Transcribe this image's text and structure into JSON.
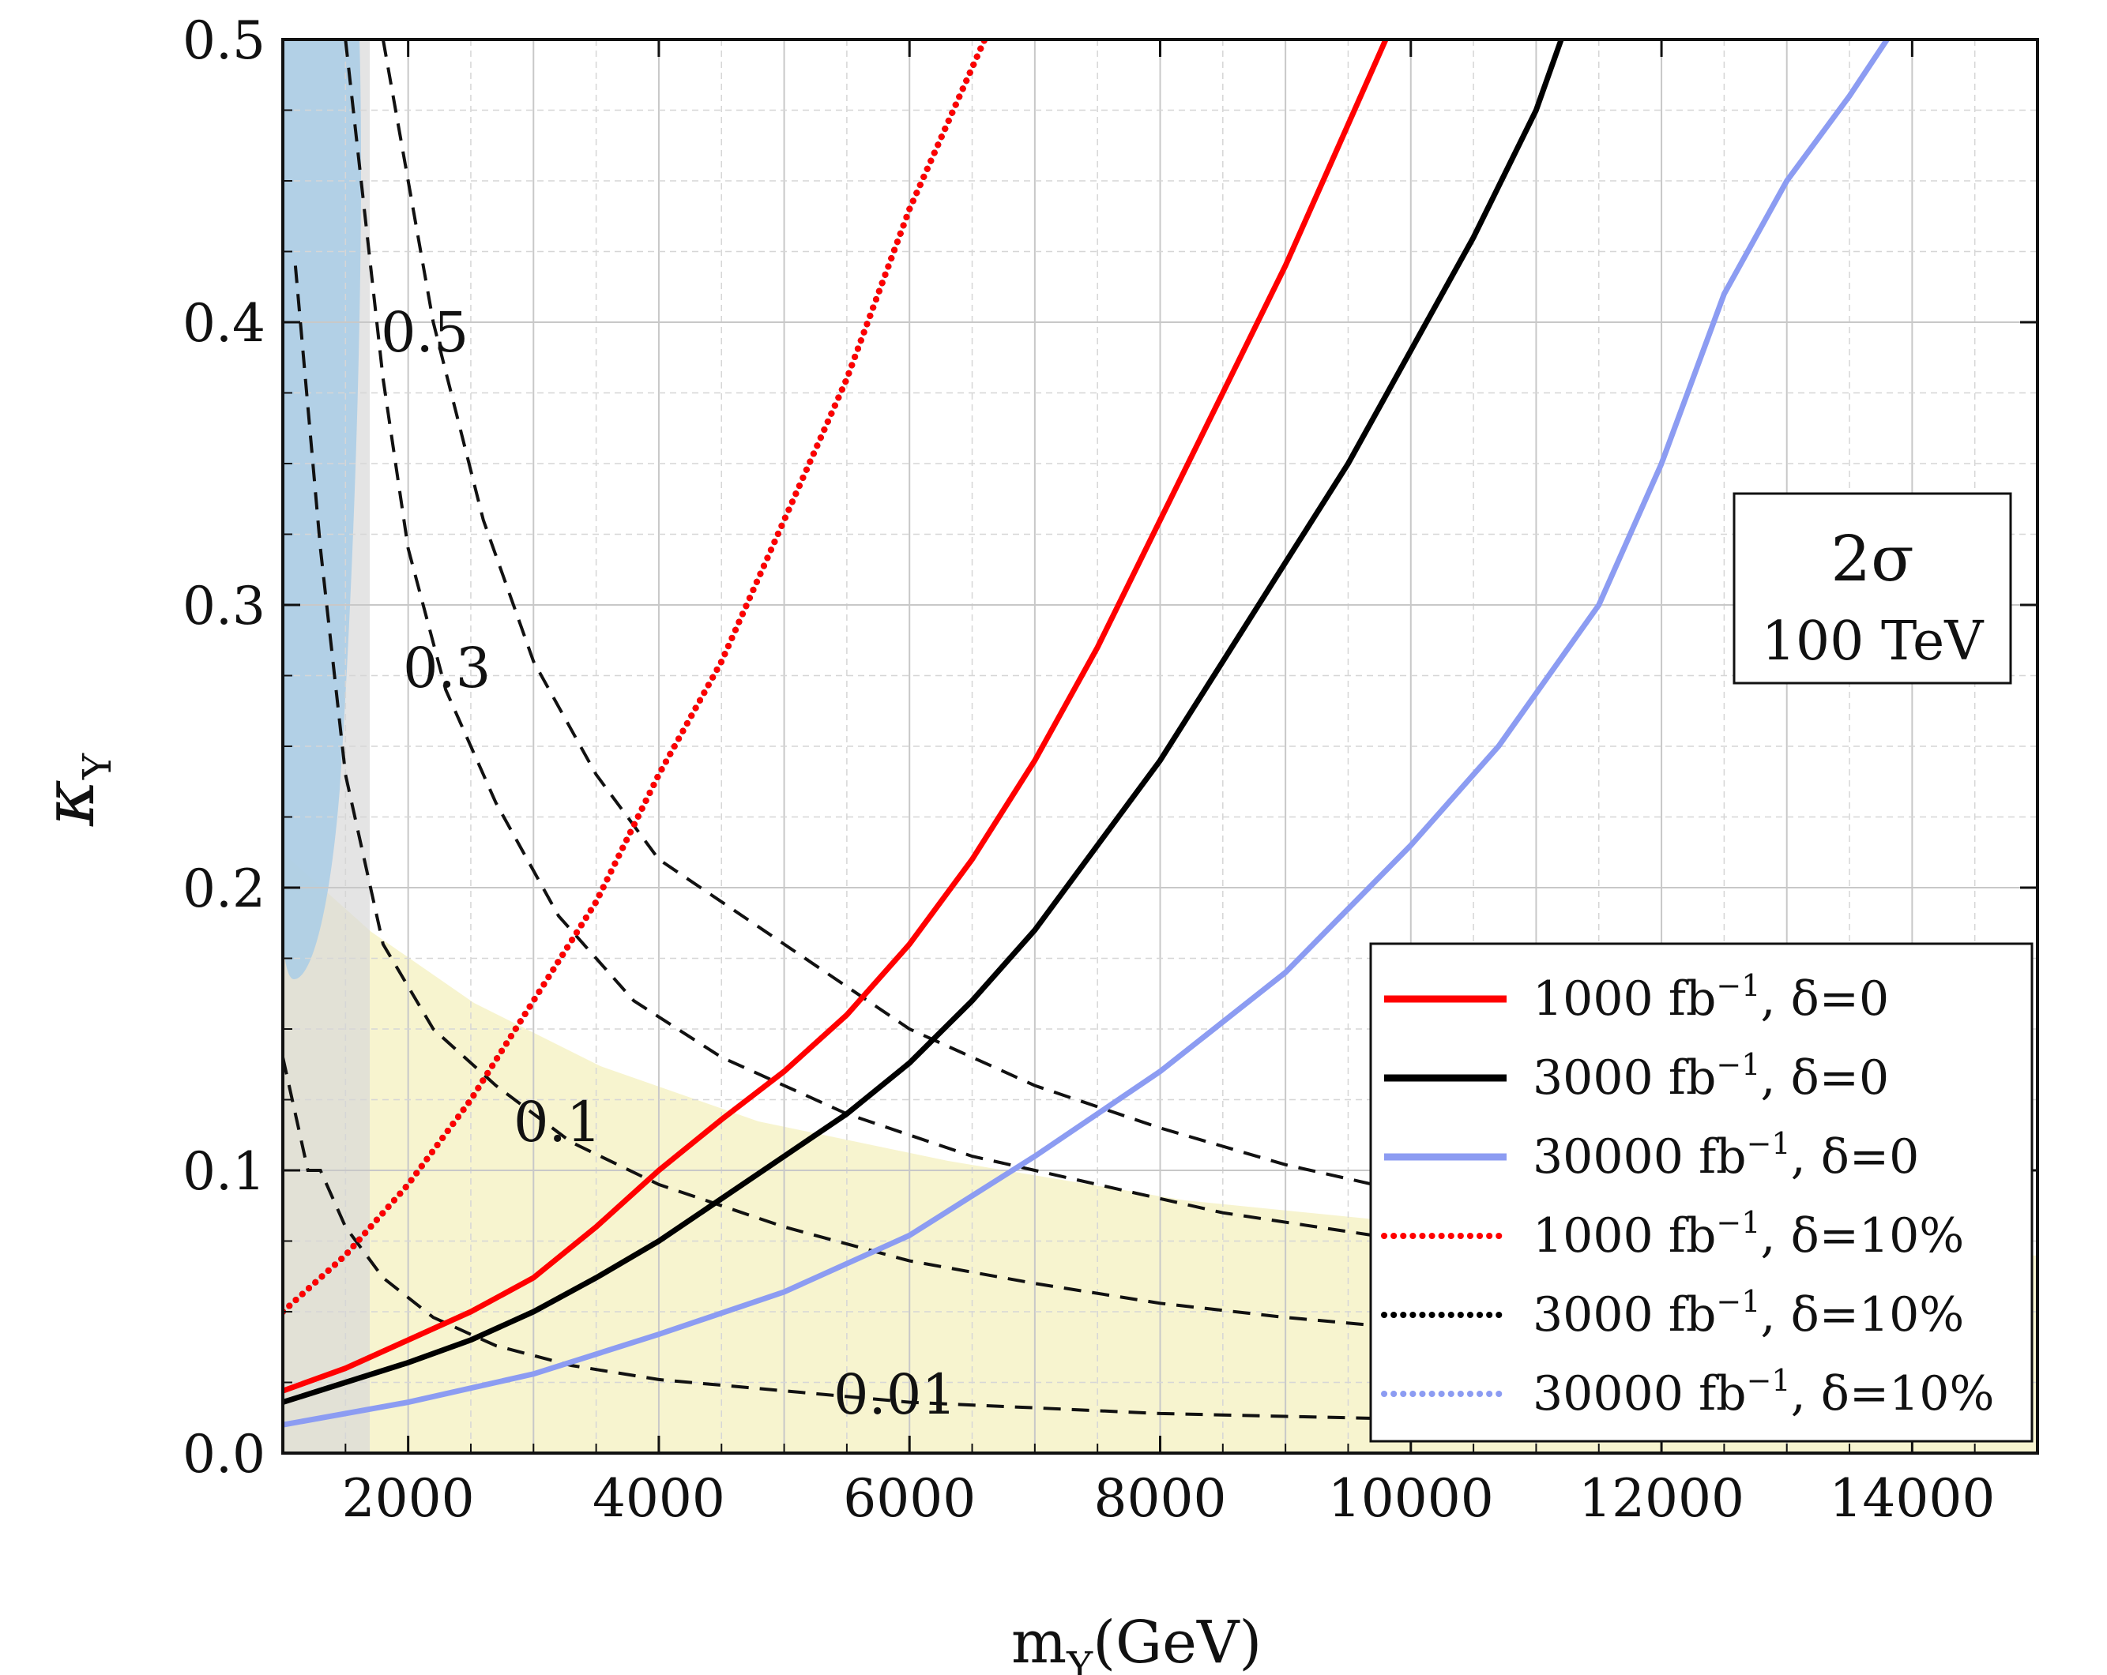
{
  "chart_data": {
    "type": "line",
    "xlabel_main": "m",
    "xlabel_sub": "Y",
    "xlabel_unit": "(GeV)",
    "ylabel_main": "κ",
    "ylabel_sub": "Y",
    "xlim": [
      1000,
      15000
    ],
    "ylim": [
      0.0,
      0.5
    ],
    "x_ticks": [
      2000,
      4000,
      6000,
      8000,
      10000,
      12000,
      14000
    ],
    "y_ticks": [
      0.0,
      0.1,
      0.2,
      0.3,
      0.4,
      0.5
    ],
    "y_tick_labels": [
      "0.0",
      "0.1",
      "0.2",
      "0.3",
      "0.4",
      "0.5"
    ],
    "grid": true,
    "annotation_box": {
      "line1": "2σ",
      "line2": "100 TeV"
    },
    "legend_position": "bottom-right",
    "series": [
      {
        "name": "1000 fb⁻¹, δ=0",
        "label_a": "1000 fb",
        "sup": "−1",
        "label_b": ", δ=0",
        "color": "#ff0000",
        "style": "solid",
        "x": [
          1000,
          1500,
          2000,
          2500,
          3000,
          3500,
          4000,
          4500,
          5000,
          5500,
          6000,
          6500,
          7000,
          7500,
          8000,
          8500,
          9000,
          9500,
          9800
        ],
        "y": [
          0.022,
          0.03,
          0.04,
          0.05,
          0.062,
          0.08,
          0.1,
          0.118,
          0.135,
          0.155,
          0.18,
          0.21,
          0.245,
          0.285,
          0.33,
          0.375,
          0.42,
          0.47,
          0.5
        ]
      },
      {
        "name": "3000 fb⁻¹, δ=0",
        "label_a": "3000 fb",
        "sup": "−1",
        "label_b": ",  δ=0",
        "color": "#000000",
        "style": "solid",
        "x": [
          1000,
          1500,
          2000,
          2500,
          3000,
          3500,
          4000,
          4500,
          5000,
          5500,
          6000,
          6500,
          7000,
          7500,
          8000,
          8500,
          9000,
          9500,
          10000,
          10500,
          11000,
          11200
        ],
        "y": [
          0.018,
          0.025,
          0.032,
          0.04,
          0.05,
          0.062,
          0.075,
          0.09,
          0.105,
          0.12,
          0.138,
          0.16,
          0.185,
          0.215,
          0.245,
          0.28,
          0.315,
          0.35,
          0.39,
          0.43,
          0.475,
          0.5
        ]
      },
      {
        "name": "30000 fb⁻¹, δ=0",
        "label_a": "30000 fb",
        "sup": "−1",
        "label_b": ",  δ=0",
        "color": "#8c9cf2",
        "style": "solid",
        "x": [
          1000,
          2000,
          3000,
          4000,
          5000,
          6000,
          7000,
          8000,
          9000,
          10000,
          10700,
          11500,
          12000,
          12500,
          13000,
          13500,
          13800
        ],
        "y": [
          0.01,
          0.018,
          0.028,
          0.042,
          0.057,
          0.077,
          0.105,
          0.135,
          0.17,
          0.215,
          0.25,
          0.3,
          0.35,
          0.41,
          0.45,
          0.48,
          0.5
        ]
      },
      {
        "name": "1000 fb⁻¹, δ=10%",
        "label_a": "1000 fb",
        "sup": "−1",
        "label_b": ",  δ=10%",
        "color": "#ff0000",
        "style": "dotted",
        "x": [
          1000,
          1500,
          2000,
          2500,
          3000,
          3500,
          4000,
          4500,
          5000,
          5500,
          6000,
          6500,
          6600
        ],
        "y": [
          0.05,
          0.07,
          0.095,
          0.125,
          0.16,
          0.195,
          0.24,
          0.28,
          0.33,
          0.38,
          0.44,
          0.49,
          0.5
        ]
      },
      {
        "name": "3000 fb⁻¹, δ=10%",
        "label_a": "3000 fb",
        "sup": "−1",
        "label_b": ",  δ=10%",
        "color": "#000000",
        "style": "dotted",
        "x": [
          1000,
          1500,
          2000,
          2500,
          3000,
          3500,
          4000,
          4500,
          5000,
          5500,
          6000,
          6500,
          6600
        ],
        "y": [
          0.05,
          0.07,
          0.095,
          0.125,
          0.16,
          0.195,
          0.24,
          0.28,
          0.33,
          0.38,
          0.44,
          0.49,
          0.5
        ]
      },
      {
        "name": "30000 fb⁻¹, δ=10%",
        "label_a": "30000 fb",
        "sup": "−1",
        "label_b": ",  δ=10%",
        "color": "#8c9cf2",
        "style": "dotted",
        "x": [
          1000,
          1500,
          2000,
          2500,
          3000,
          3500,
          4000,
          4500,
          5000,
          5500,
          6000,
          6500,
          6600
        ],
        "y": [
          0.05,
          0.07,
          0.095,
          0.125,
          0.16,
          0.195,
          0.24,
          0.28,
          0.33,
          0.38,
          0.44,
          0.49,
          0.5
        ]
      }
    ],
    "contours": [
      {
        "label": "0.5",
        "x": [
          1800,
          2200,
          2600,
          3000,
          3500,
          4000,
          5000,
          6000,
          7000,
          8000,
          9000,
          10000,
          11000
        ],
        "y": [
          0.5,
          0.4,
          0.33,
          0.28,
          0.24,
          0.21,
          0.18,
          0.15,
          0.13,
          0.115,
          0.102,
          0.092,
          0.085
        ]
      },
      {
        "label": "0.3",
        "x": [
          1500,
          1800,
          2000,
          2300,
          2700,
          3200,
          3800,
          4500,
          5500,
          6500,
          7500,
          8500,
          10000,
          11000
        ],
        "y": [
          0.5,
          0.38,
          0.32,
          0.27,
          0.23,
          0.19,
          0.16,
          0.14,
          0.12,
          0.105,
          0.095,
          0.085,
          0.075,
          0.07
        ]
      },
      {
        "label": "0.1",
        "x": [
          1100,
          1300,
          1500,
          1800,
          2200,
          2700,
          3300,
          4000,
          5000,
          6000,
          7000,
          8000,
          9000,
          10000,
          11000
        ],
        "y": [
          0.42,
          0.32,
          0.24,
          0.18,
          0.15,
          0.13,
          0.11,
          0.095,
          0.08,
          0.068,
          0.06,
          0.053,
          0.048,
          0.044,
          0.04
        ]
      },
      {
        "label": "0.01",
        "x": [
          1000,
          1200,
          1300,
          1500,
          1800,
          2200,
          2700,
          3300,
          4000,
          5000,
          6000,
          7000,
          8000,
          9000,
          10000,
          11000
        ],
        "y": [
          0.14,
          0.1,
          0.1,
          0.08,
          0.062,
          0.048,
          0.038,
          0.031,
          0.026,
          0.022,
          0.018,
          0.016,
          0.014,
          0.013,
          0.012,
          0.012
        ]
      }
    ],
    "contour_labels": [
      "0.5",
      "0.3",
      "0.1",
      "0.01"
    ]
  }
}
